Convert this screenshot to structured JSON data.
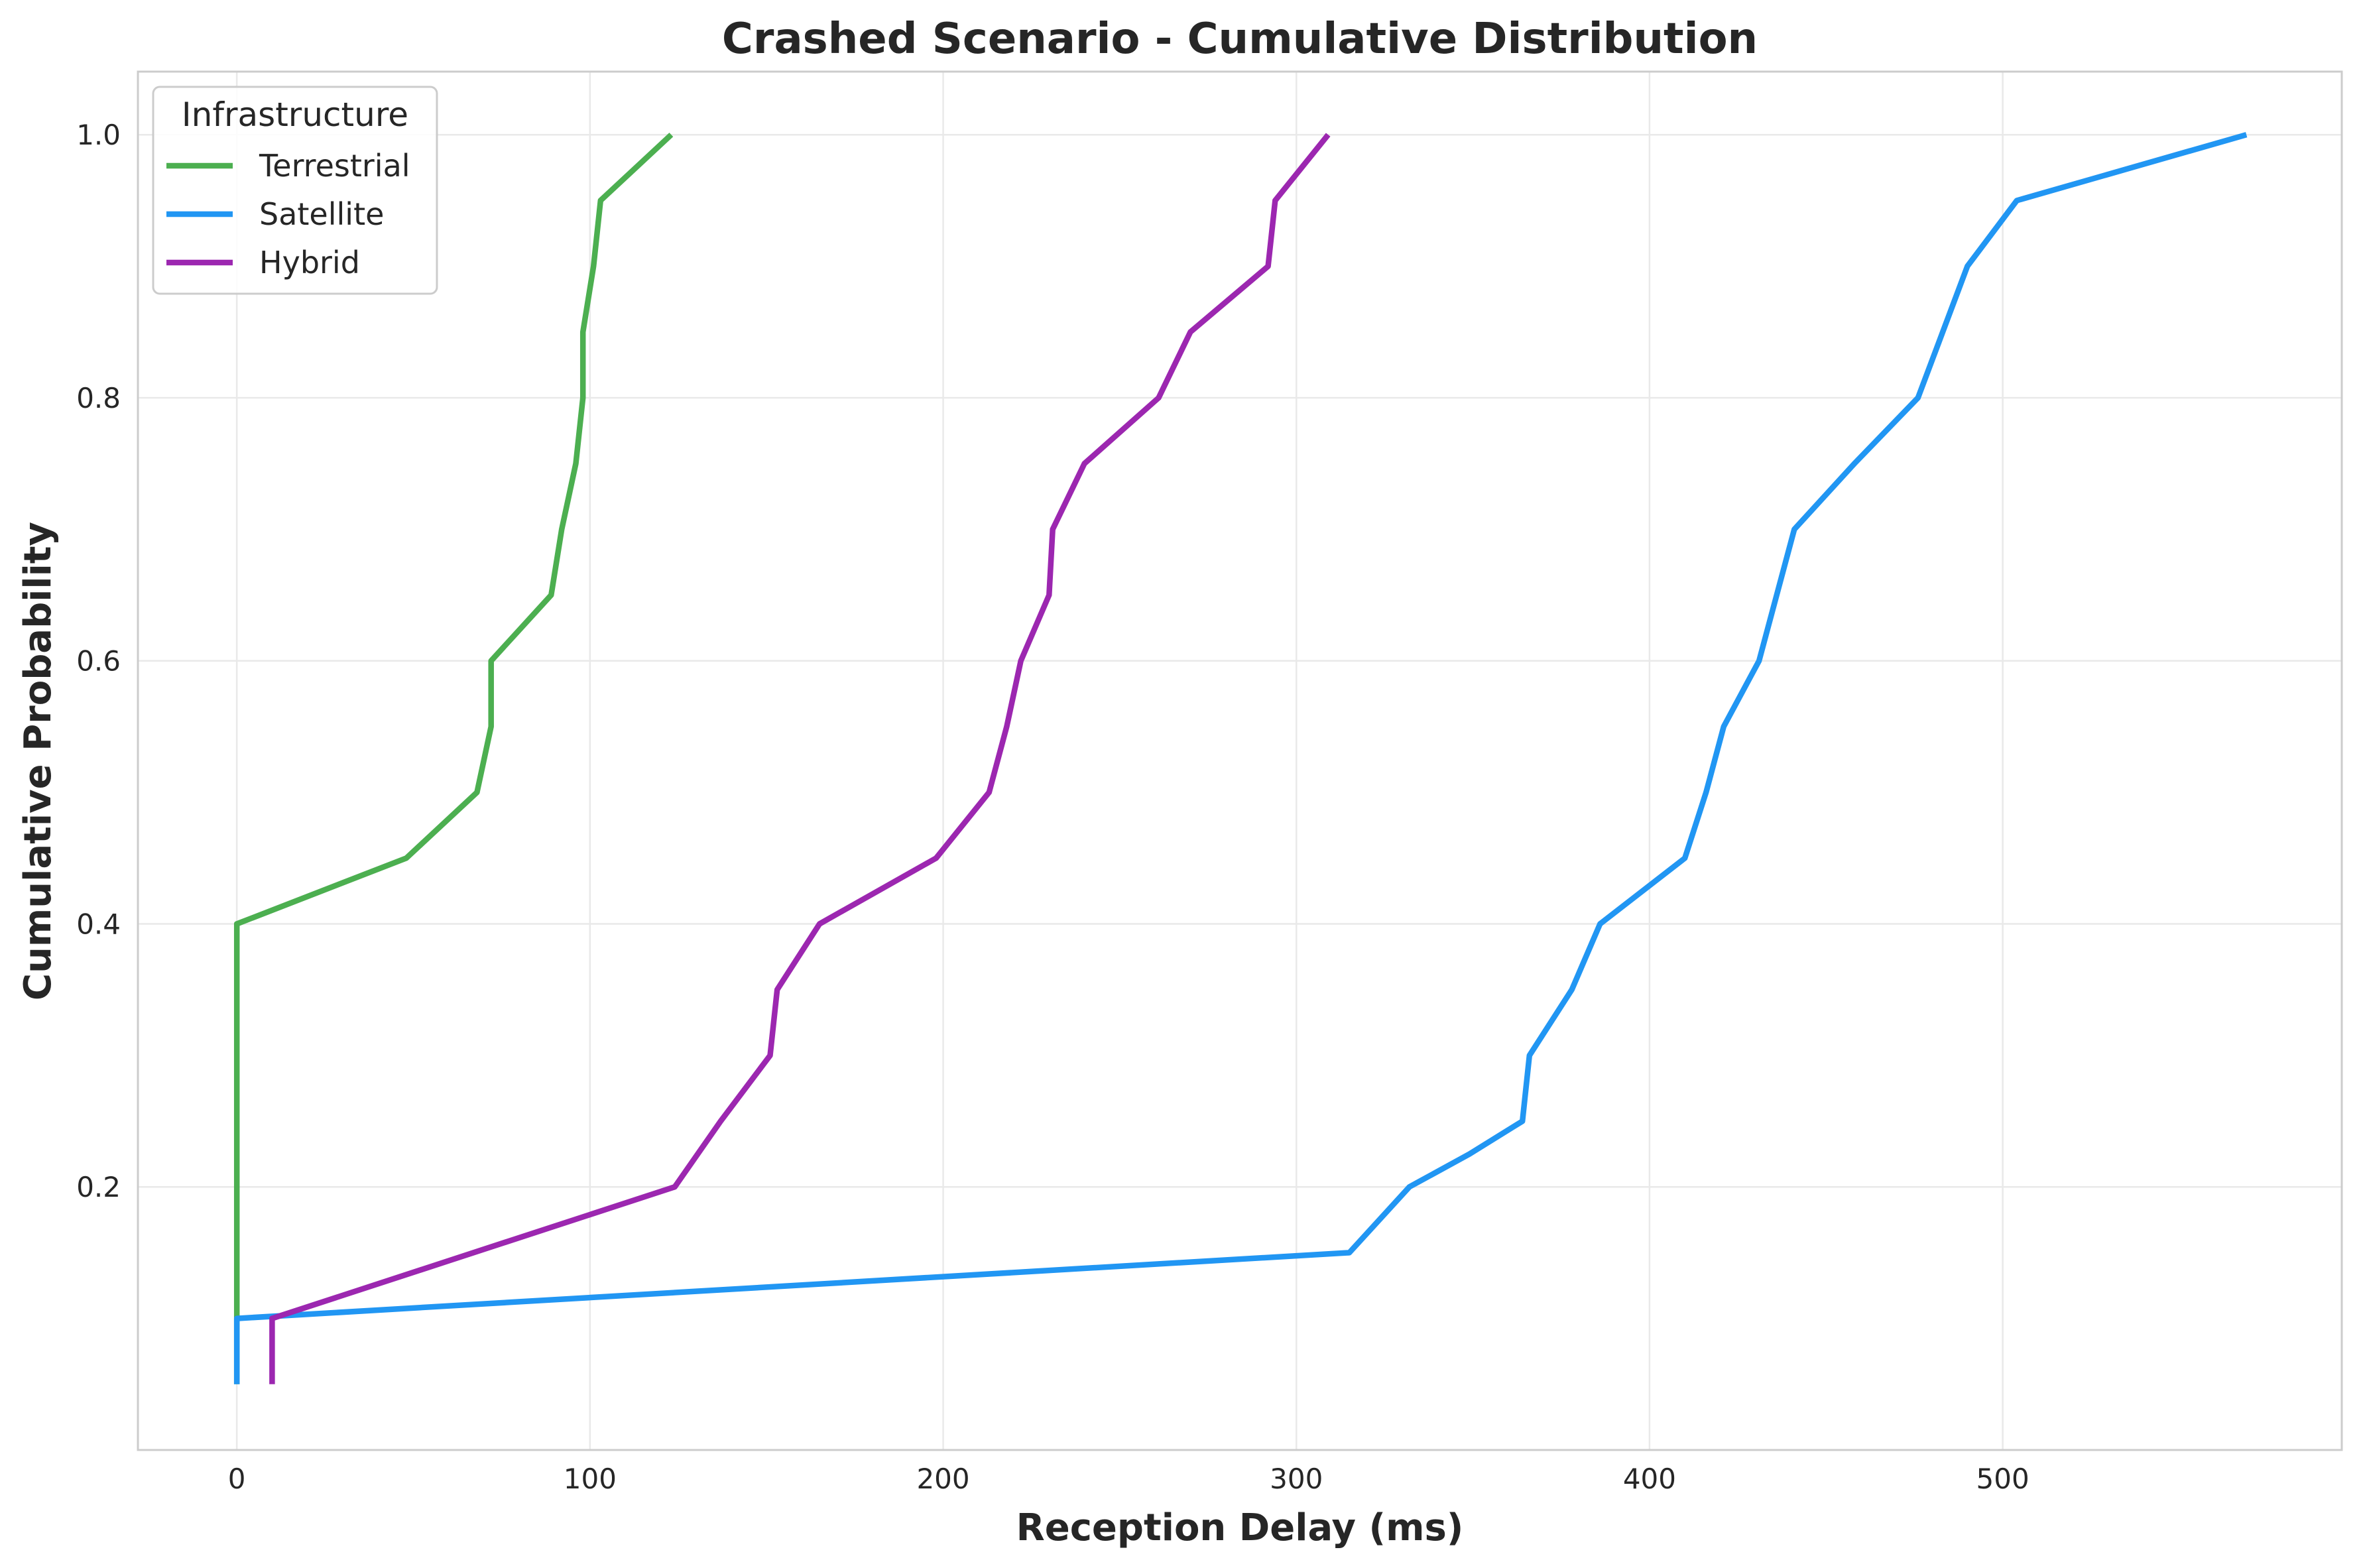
{
  "chart_data": {
    "type": "line",
    "title": "Crashed Scenario - Cumulative Distribution",
    "xlabel": "Reception Delay (ms)",
    "ylabel": "Cumulative Probability",
    "xlim": [
      -28,
      596
    ],
    "ylim": [
      0.0,
      1.048
    ],
    "xticks": [
      0,
      100,
      200,
      300,
      400,
      500
    ],
    "yticks": [
      0.2,
      0.4,
      0.6,
      0.8,
      1.0
    ],
    "grid": true,
    "legend": {
      "title": "Infrastructure",
      "placement": "top-left"
    },
    "series": [
      {
        "name": "Terrestrial",
        "color": "#4CAF50",
        "points": [
          [
            0,
            0.05
          ],
          [
            0,
            0.1
          ],
          [
            0,
            0.15
          ],
          [
            0,
            0.2
          ],
          [
            0,
            0.25
          ],
          [
            0,
            0.3
          ],
          [
            0,
            0.35
          ],
          [
            0,
            0.4
          ],
          [
            48,
            0.45
          ],
          [
            68,
            0.5
          ],
          [
            72,
            0.55
          ],
          [
            72,
            0.6
          ],
          [
            89,
            0.65
          ],
          [
            92,
            0.7
          ],
          [
            96,
            0.75
          ],
          [
            98,
            0.8
          ],
          [
            98,
            0.85
          ],
          [
            101,
            0.9
          ],
          [
            103,
            0.95
          ],
          [
            123,
            1.0
          ]
        ]
      },
      {
        "name": "Satellite",
        "color": "#2196F3",
        "points": [
          [
            0,
            0.05
          ],
          [
            0,
            0.1
          ],
          [
            315,
            0.15
          ],
          [
            332,
            0.2
          ],
          [
            349,
            0.225
          ],
          [
            364,
            0.25
          ],
          [
            366,
            0.3
          ],
          [
            378,
            0.35
          ],
          [
            386,
            0.4
          ],
          [
            410,
            0.45
          ],
          [
            416,
            0.5
          ],
          [
            421,
            0.55
          ],
          [
            431,
            0.6
          ],
          [
            441,
            0.7
          ],
          [
            458,
            0.75
          ],
          [
            476,
            0.8
          ],
          [
            483,
            0.85
          ],
          [
            490,
            0.9
          ],
          [
            504,
            0.95
          ],
          [
            569,
            1.0
          ]
        ]
      },
      {
        "name": "Hybrid",
        "color": "#9C27B0",
        "points": [
          [
            10,
            0.05
          ],
          [
            10,
            0.1
          ],
          [
            124,
            0.2
          ],
          [
            137,
            0.25
          ],
          [
            151,
            0.3
          ],
          [
            153,
            0.35
          ],
          [
            165,
            0.4
          ],
          [
            198,
            0.45
          ],
          [
            213,
            0.5
          ],
          [
            218,
            0.55
          ],
          [
            222,
            0.6
          ],
          [
            230,
            0.65
          ],
          [
            231,
            0.7
          ],
          [
            240,
            0.75
          ],
          [
            261,
            0.8
          ],
          [
            270,
            0.85
          ],
          [
            292,
            0.9
          ],
          [
            294,
            0.95
          ],
          [
            309,
            1.0
          ]
        ]
      }
    ]
  }
}
